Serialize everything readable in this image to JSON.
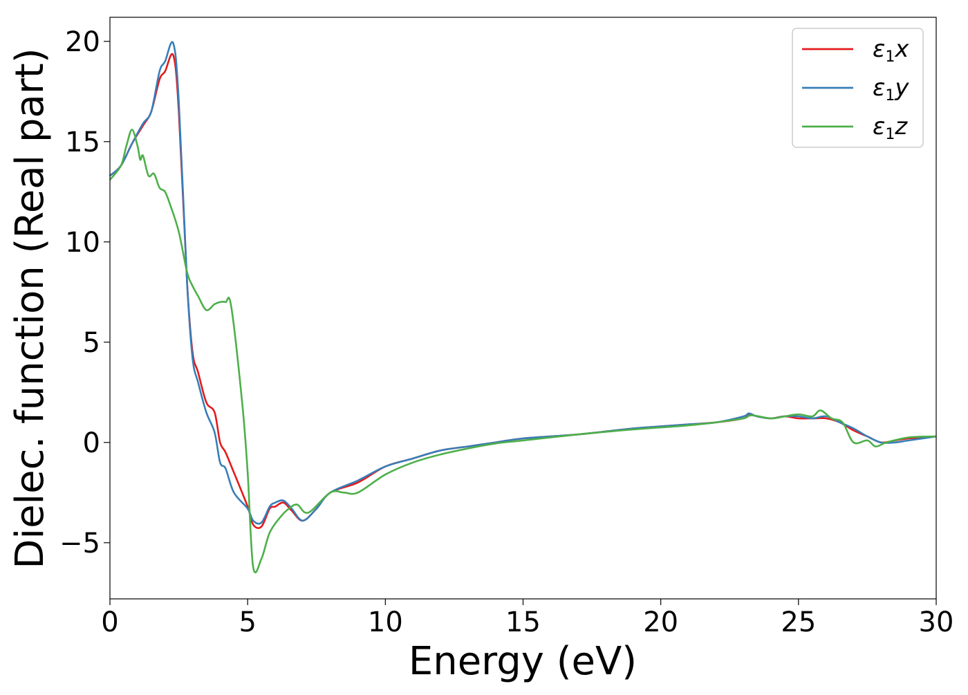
{
  "chart_data": {
    "type": "line",
    "title": "",
    "xlabel": "Energy (eV)",
    "ylabel": "Dielec. function (Real part)",
    "xlim": [
      0,
      30
    ],
    "ylim": [
      -7.8,
      21.2
    ],
    "xticks": [
      0,
      5,
      10,
      15,
      20,
      25,
      30
    ],
    "xtick_labels": [
      "0",
      "5",
      "10",
      "15",
      "20",
      "25",
      "30"
    ],
    "yticks": [
      -5,
      0,
      5,
      10,
      15,
      20
    ],
    "ytick_labels": [
      "−5",
      "0",
      "5",
      "10",
      "15",
      "20"
    ],
    "grid": false,
    "legend_position": "top-right",
    "series": [
      {
        "name": "ε1x",
        "legend_base": "ε",
        "legend_sub": "1",
        "legend_tail": "x",
        "color": "#e41a1c",
        "x": [
          0,
          0.4,
          0.8,
          1.2,
          1.5,
          1.8,
          2.0,
          2.3,
          2.5,
          2.8,
          3.0,
          3.2,
          3.5,
          3.8,
          4.0,
          4.2,
          4.5,
          5.0,
          5.2,
          5.5,
          5.8,
          6.0,
          6.3,
          6.6,
          7.0,
          7.5,
          8.0,
          9.0,
          10.0,
          11.0,
          12.0,
          13.0,
          14.0,
          15.0,
          17.0,
          19.0,
          20.0,
          21.0,
          22.0,
          23.0,
          23.2,
          23.5,
          24.0,
          24.5,
          25.0,
          25.5,
          26.0,
          26.5,
          27.0,
          27.5,
          28.0,
          28.5,
          29.0,
          30.0
        ],
        "y": [
          13.3,
          13.8,
          14.9,
          15.8,
          16.5,
          18.1,
          18.5,
          19.3,
          16.5,
          8.0,
          4.5,
          3.5,
          2.0,
          1.5,
          0.0,
          -0.5,
          -1.5,
          -3.2,
          -4.1,
          -4.2,
          -3.3,
          -3.2,
          -3.0,
          -3.4,
          -3.9,
          -3.3,
          -2.5,
          -2.0,
          -1.2,
          -0.8,
          -0.4,
          -0.2,
          0.0,
          0.2,
          0.4,
          0.7,
          0.8,
          0.9,
          1.0,
          1.2,
          1.4,
          1.3,
          1.2,
          1.3,
          1.2,
          1.2,
          1.2,
          1.0,
          0.6,
          0.3,
          0.0,
          0.1,
          0.2,
          0.3
        ]
      },
      {
        "name": "ε1y",
        "legend_base": "ε",
        "legend_sub": "1",
        "legend_tail": "y",
        "color": "#377eb8",
        "x": [
          0,
          0.4,
          0.8,
          1.2,
          1.5,
          1.8,
          2.0,
          2.3,
          2.5,
          2.8,
          3.0,
          3.2,
          3.5,
          3.8,
          4.0,
          4.2,
          4.5,
          5.0,
          5.2,
          5.5,
          5.8,
          6.0,
          6.3,
          6.6,
          7.0,
          7.5,
          8.0,
          9.0,
          10.0,
          11.0,
          12.0,
          13.0,
          14.0,
          15.0,
          17.0,
          19.0,
          20.0,
          21.0,
          22.0,
          23.0,
          23.2,
          23.5,
          24.0,
          24.5,
          25.0,
          25.5,
          26.0,
          26.5,
          27.0,
          27.5,
          28.0,
          28.5,
          29.0,
          30.0
        ],
        "y": [
          13.3,
          13.8,
          14.9,
          15.9,
          16.5,
          18.5,
          19.0,
          19.9,
          17.0,
          8.0,
          4.2,
          3.0,
          1.5,
          0.5,
          -1.0,
          -1.3,
          -2.5,
          -3.3,
          -3.9,
          -4.0,
          -3.2,
          -3.0,
          -2.9,
          -3.3,
          -3.9,
          -3.3,
          -2.5,
          -1.9,
          -1.2,
          -0.8,
          -0.4,
          -0.2,
          0.0,
          0.2,
          0.4,
          0.7,
          0.8,
          0.9,
          1.0,
          1.3,
          1.45,
          1.3,
          1.2,
          1.3,
          1.3,
          1.2,
          1.3,
          1.0,
          0.7,
          0.3,
          0.0,
          0.0,
          0.1,
          0.3
        ]
      },
      {
        "name": "ε1z",
        "legend_base": "ε",
        "legend_sub": "1",
        "legend_tail": "z",
        "color": "#4daf4a",
        "x": [
          0,
          0.4,
          0.6,
          0.8,
          1.0,
          1.1,
          1.2,
          1.4,
          1.6,
          1.8,
          2.0,
          2.2,
          2.5,
          2.8,
          3.0,
          3.2,
          3.5,
          3.8,
          4.0,
          4.2,
          4.4,
          4.8,
          5.0,
          5.2,
          5.5,
          5.8,
          6.2,
          6.5,
          6.8,
          7.2,
          8.0,
          8.5,
          9.0,
          10.0,
          11.0,
          12.0,
          13.0,
          14.0,
          15.0,
          17.0,
          19.0,
          20.0,
          21.0,
          22.0,
          23.0,
          23.3,
          24.0,
          24.5,
          25.0,
          25.5,
          25.8,
          26.2,
          26.6,
          27.0,
          27.5,
          27.8,
          28.2,
          29.0,
          30.0
        ],
        "y": [
          13.1,
          13.8,
          14.8,
          15.6,
          14.8,
          14.1,
          14.3,
          13.3,
          13.4,
          12.7,
          12.5,
          11.8,
          10.5,
          8.5,
          7.8,
          7.3,
          6.6,
          6.9,
          7.0,
          7.0,
          6.8,
          2.0,
          -1.5,
          -6.2,
          -5.8,
          -4.5,
          -3.7,
          -3.3,
          -3.1,
          -3.5,
          -2.5,
          -2.5,
          -2.5,
          -1.6,
          -1.0,
          -0.6,
          -0.3,
          -0.05,
          0.1,
          0.4,
          0.65,
          0.75,
          0.85,
          1.0,
          1.2,
          1.35,
          1.2,
          1.3,
          1.4,
          1.3,
          1.6,
          1.2,
          1.0,
          0.0,
          0.1,
          -0.2,
          0.0,
          0.25,
          0.3
        ]
      }
    ]
  }
}
